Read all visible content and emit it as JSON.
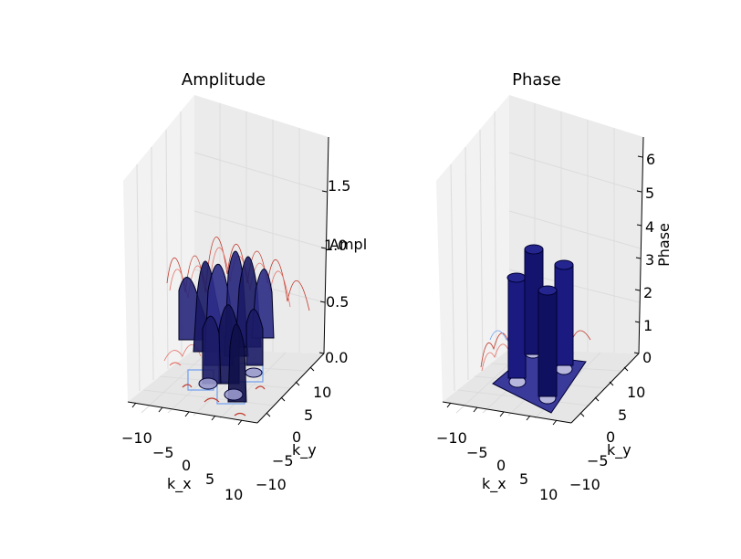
{
  "chart_data": [
    {
      "type": "surface3d",
      "title": "Amplitude",
      "xlabel": "k_x",
      "ylabel": "k_y",
      "zlabel": "Ampl",
      "xlim": [
        -12,
        12
      ],
      "ylim": [
        -12,
        12
      ],
      "zlim": [
        0,
        1.8
      ],
      "xticks": [
        "−10",
        "−5",
        "0",
        "5",
        "10"
      ],
      "yticks": [
        "−10",
        "−5",
        "0",
        "5",
        "10"
      ],
      "zticks": [
        "0.0",
        "0.5",
        "1.0",
        "1.5"
      ],
      "grid": true,
      "colors": {
        "surface": "#1a1a66",
        "edge": "#000022",
        "contour_red": "#c0392b",
        "contour_blue": "#6f9ef0"
      }
    },
    {
      "type": "surface3d",
      "title": "Phase",
      "xlabel": "k_x",
      "ylabel": "k_y",
      "zlabel": "Phase",
      "xlim": [
        -12,
        12
      ],
      "ylim": [
        -12,
        12
      ],
      "zlim": [
        0,
        6.4
      ],
      "xticks": [
        "−10",
        "−5",
        "0",
        "5",
        "10"
      ],
      "yticks": [
        "−10",
        "−5",
        "0",
        "5",
        "10"
      ],
      "zticks": [
        "0",
        "1",
        "2",
        "3",
        "4",
        "5",
        "6"
      ],
      "grid": true,
      "colors": {
        "surface": "#1a1a80",
        "edge": "#000030",
        "contour_red": "#c0392b",
        "contour_blue": "#6f9ef0"
      }
    }
  ]
}
